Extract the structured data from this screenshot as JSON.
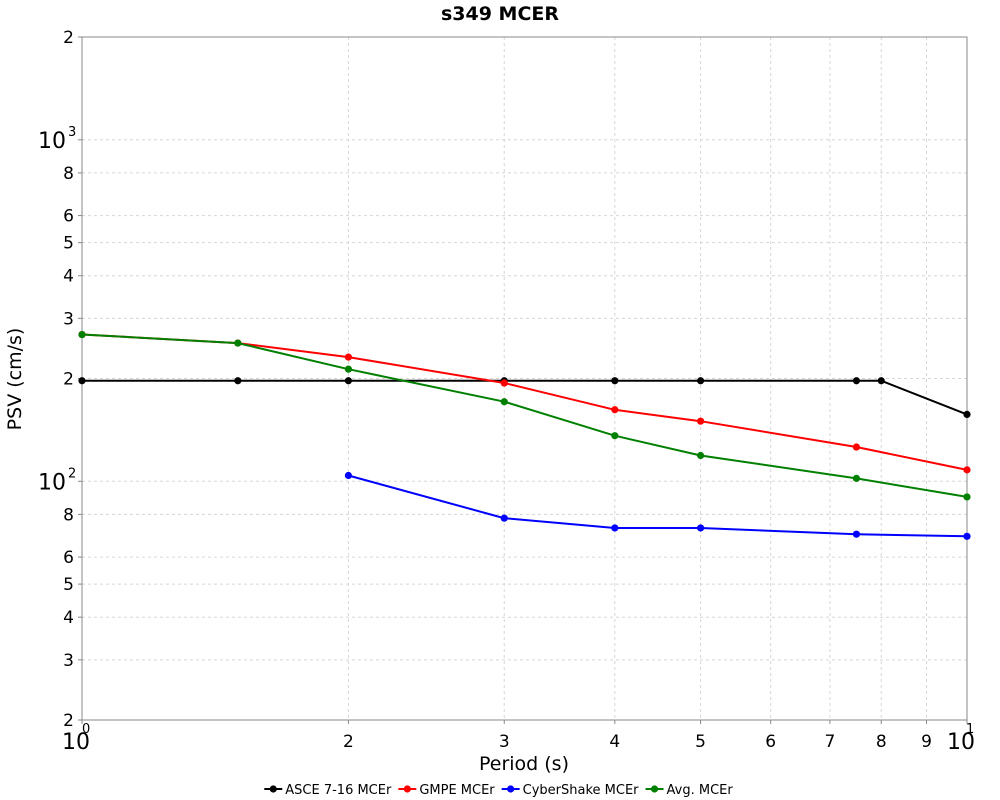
{
  "chart_data": {
    "type": "line",
    "title": "s349 MCER",
    "xlabel": "Period (s)",
    "ylabel": "PSV (cm/s)",
    "xscale": "log",
    "yscale": "log",
    "xlim": [
      1,
      10
    ],
    "ylim": [
      20,
      2000
    ],
    "grid": true,
    "legend_position": "bottom",
    "x_ticks": [
      {
        "value": 1,
        "label": "10",
        "sup": "0"
      },
      {
        "value": 2,
        "label": "2",
        "sup": ""
      },
      {
        "value": 3,
        "label": "3",
        "sup": ""
      },
      {
        "value": 4,
        "label": "4",
        "sup": ""
      },
      {
        "value": 5,
        "label": "5",
        "sup": ""
      },
      {
        "value": 6,
        "label": "6",
        "sup": ""
      },
      {
        "value": 7,
        "label": "7",
        "sup": ""
      },
      {
        "value": 8,
        "label": "8",
        "sup": ""
      },
      {
        "value": 9,
        "label": "9",
        "sup": ""
      },
      {
        "value": 10,
        "label": "10",
        "sup": "1"
      }
    ],
    "y_ticks": [
      {
        "value": 20,
        "label": "2",
        "sup": ""
      },
      {
        "value": 30,
        "label": "3",
        "sup": ""
      },
      {
        "value": 40,
        "label": "4",
        "sup": ""
      },
      {
        "value": 50,
        "label": "5",
        "sup": ""
      },
      {
        "value": 60,
        "label": "6",
        "sup": ""
      },
      {
        "value": 80,
        "label": "8",
        "sup": ""
      },
      {
        "value": 100,
        "label": "10",
        "sup": "2"
      },
      {
        "value": 200,
        "label": "2",
        "sup": ""
      },
      {
        "value": 300,
        "label": "3",
        "sup": ""
      },
      {
        "value": 400,
        "label": "4",
        "sup": ""
      },
      {
        "value": 500,
        "label": "5",
        "sup": ""
      },
      {
        "value": 600,
        "label": "6",
        "sup": ""
      },
      {
        "value": 800,
        "label": "8",
        "sup": ""
      },
      {
        "value": 1000,
        "label": "10",
        "sup": "3"
      },
      {
        "value": 2000,
        "label": "2",
        "sup": ""
      }
    ],
    "series": [
      {
        "name": "ASCE 7-16 MCEr",
        "color": "#000000",
        "x": [
          1,
          1.5,
          2,
          3,
          4,
          5,
          7.5,
          8,
          10
        ],
        "y": [
          197,
          197,
          197,
          197,
          197,
          197,
          197,
          197,
          157
        ]
      },
      {
        "name": "GMPE MCEr",
        "color": "#ff0000",
        "x": [
          1,
          1.5,
          2,
          3,
          4,
          5,
          7.5,
          10
        ],
        "y": [
          269,
          254,
          231,
          194,
          162,
          150,
          126,
          108
        ]
      },
      {
        "name": "CyberShake MCEr",
        "color": "#0000ff",
        "x": [
          2,
          3,
          4,
          5,
          7.5,
          10
        ],
        "y": [
          104,
          78,
          73,
          73,
          70,
          69
        ]
      },
      {
        "name": "Avg. MCEr",
        "color": "#008000",
        "x": [
          1,
          1.5,
          2,
          3,
          4,
          5,
          7.5,
          10
        ],
        "y": [
          269,
          254,
          213,
          171,
          136,
          119,
          102,
          90
        ]
      }
    ]
  }
}
